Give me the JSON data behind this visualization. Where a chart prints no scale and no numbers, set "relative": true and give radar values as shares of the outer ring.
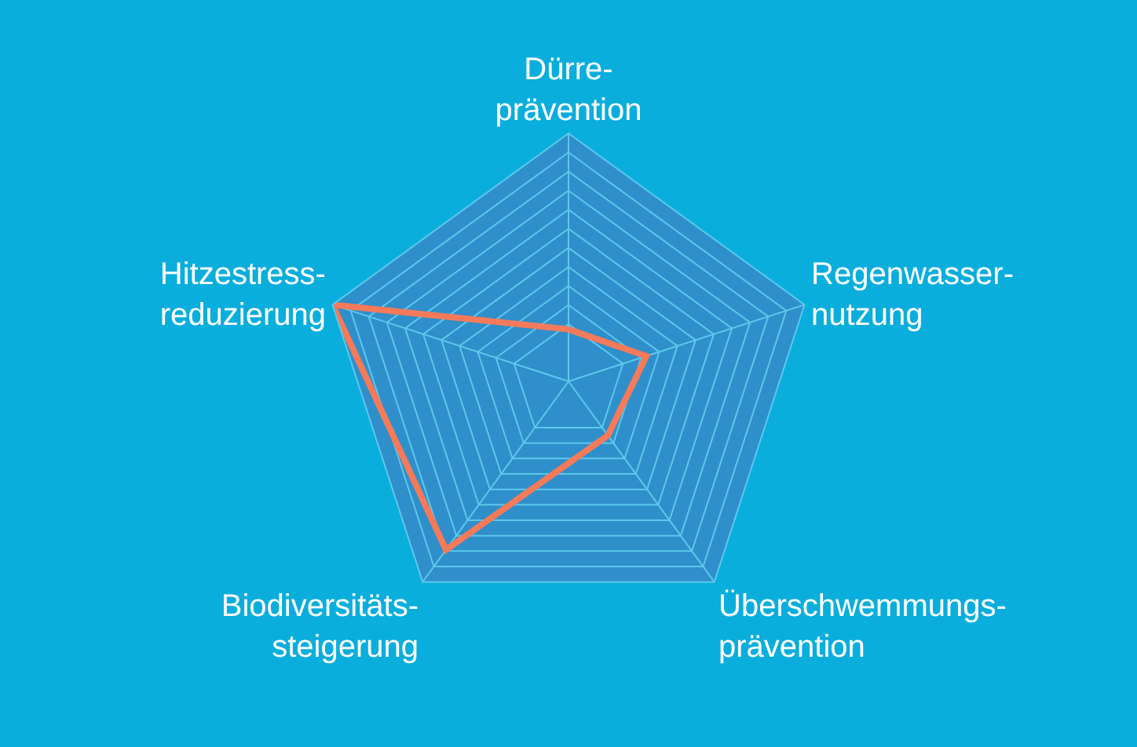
{
  "chart_data": {
    "type": "radar",
    "relative": true,
    "grid": true,
    "marker": "none",
    "categories": [
      "Dürre-\nprävention",
      "Regenwasser-\nnutzung",
      "Überschwemmungs-\nprävention",
      "Biodiversitäts-\nsteigerung",
      "Hitzestress-\nreduzierung"
    ],
    "series": [
      {
        "color": "#f47a5a",
        "values": [
          0.21,
          0.33,
          0.27,
          0.84,
          1
        ]
      }
    ]
  }
}
